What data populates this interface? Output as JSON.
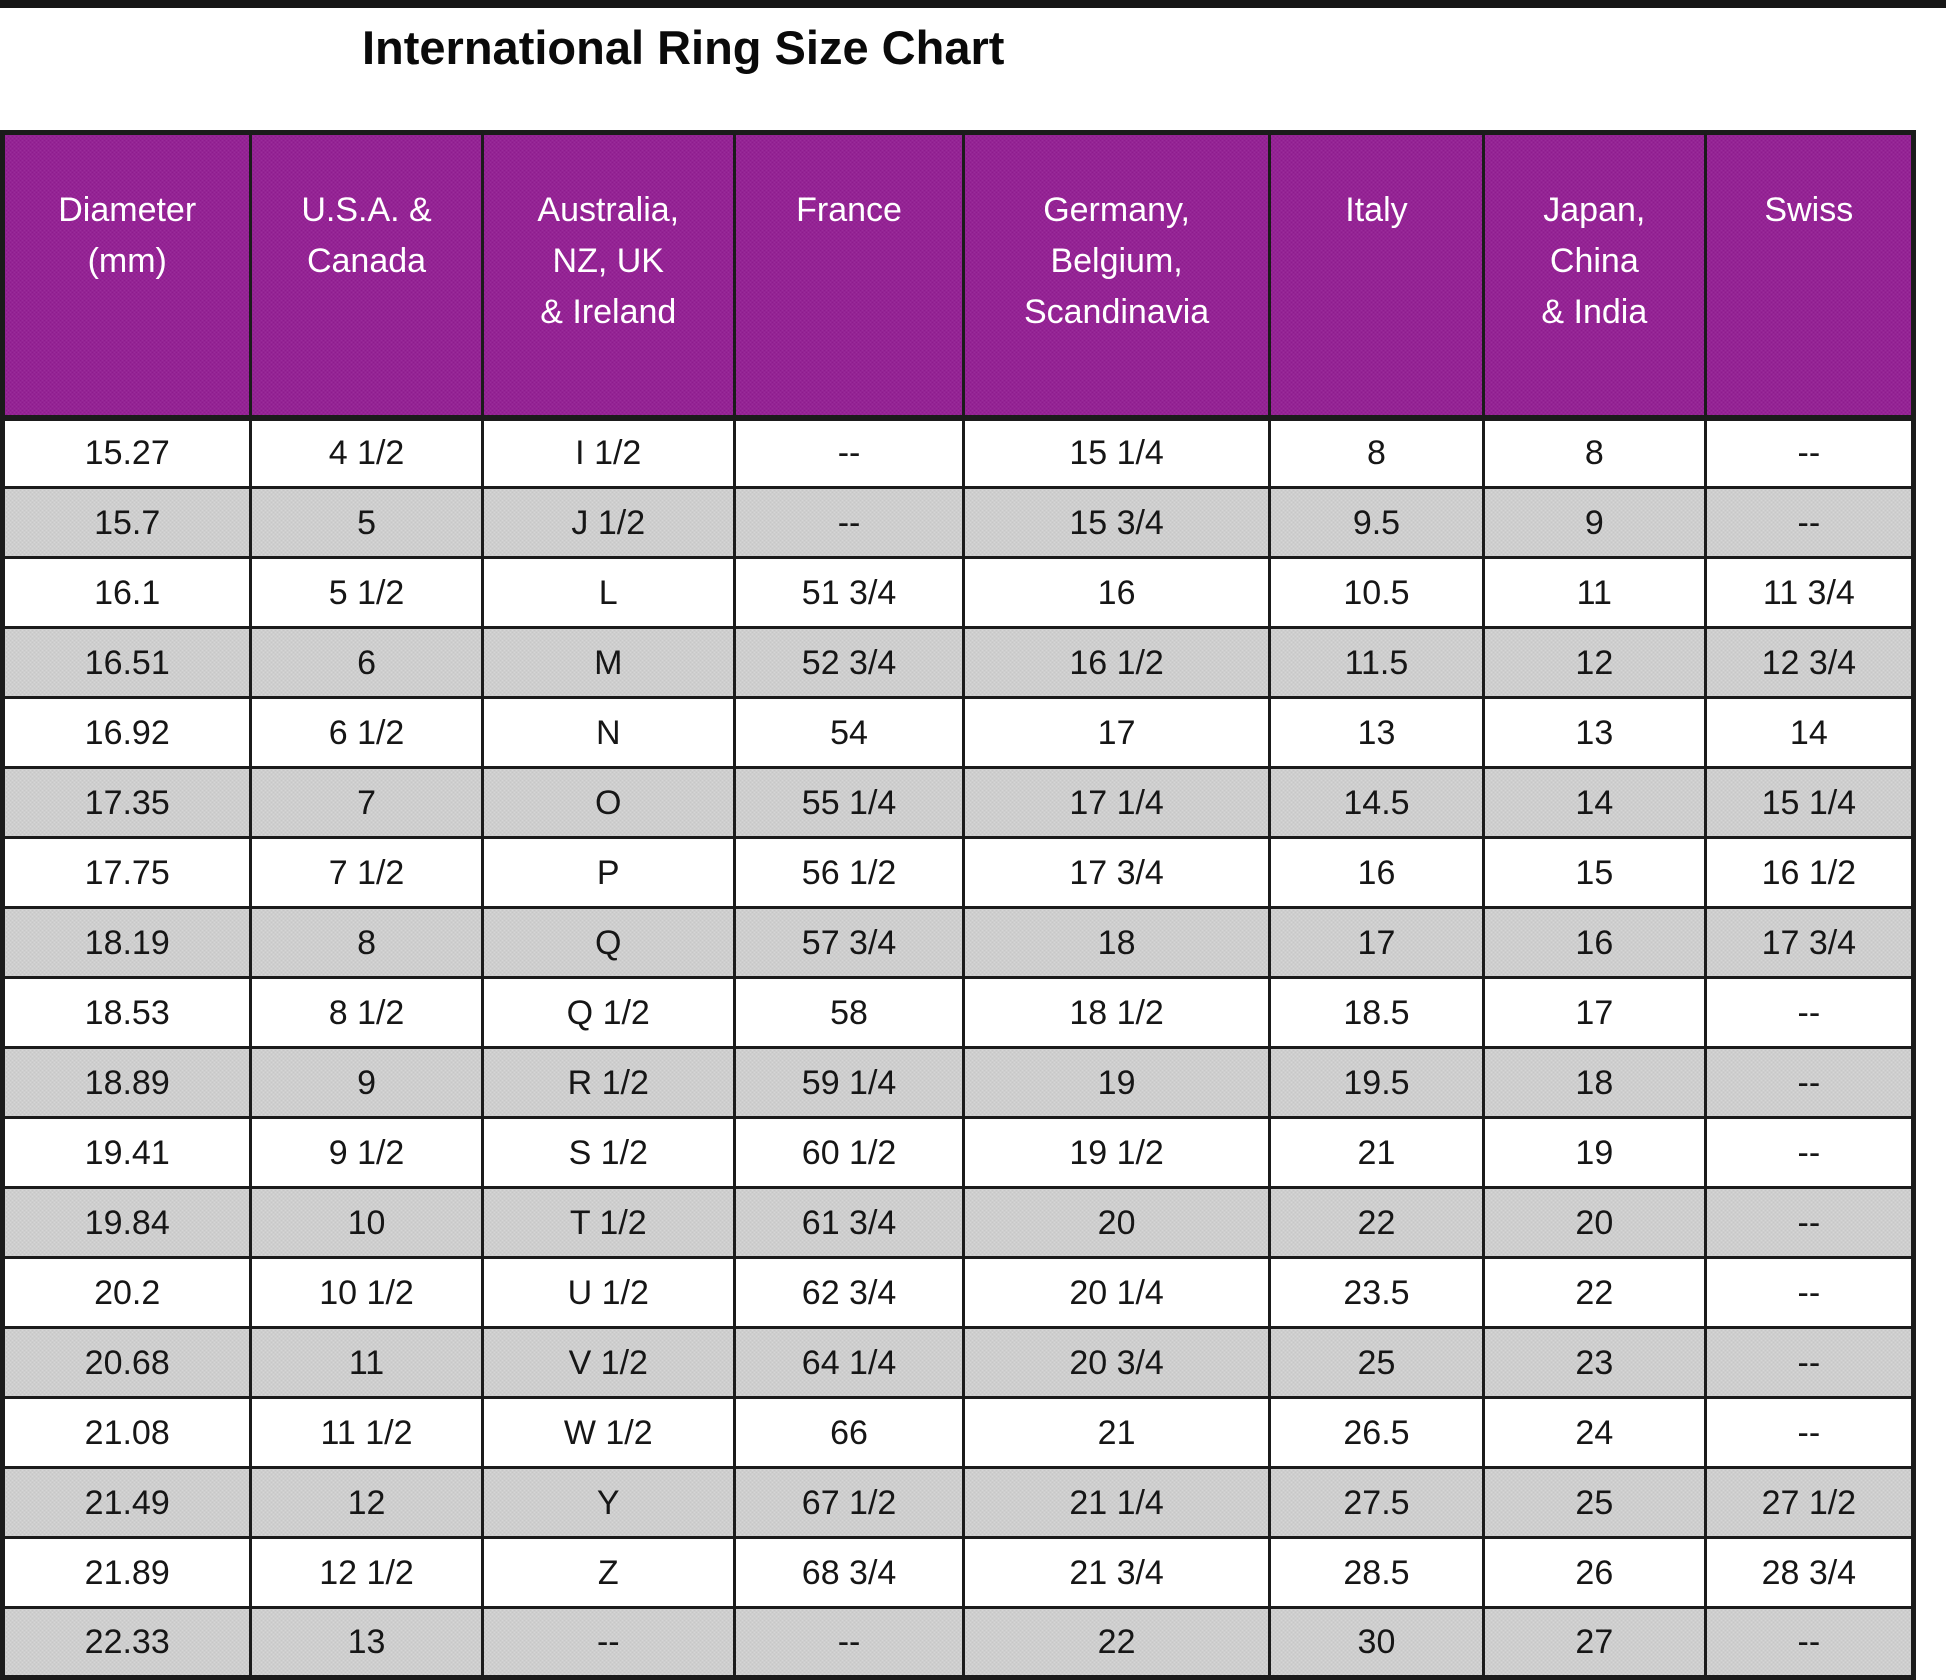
{
  "colors": {
    "header_bg": "#8e1b8e",
    "header_text": "#ffffff",
    "row_alt_bg": "#c7c7c7",
    "row_bg": "#ffffff",
    "border": "#1b1b1b"
  },
  "chart_data": {
    "type": "table",
    "title": "International Ring Size Chart",
    "columns": [
      "Diameter\n(mm)",
      "U.S.A. &\nCanada",
      "Australia,\nNZ, UK\n& Ireland",
      "France",
      "Germany,\nBelgium,\nScandinavia",
      "Italy",
      "Japan,\nChina\n& India",
      "Swiss"
    ],
    "rows": [
      [
        "15.27",
        "4 1/2",
        "I 1/2",
        "--",
        "15 1/4",
        "8",
        "8",
        "--"
      ],
      [
        "15.7",
        "5",
        "J 1/2",
        "--",
        "15 3/4",
        "9.5",
        "9",
        "--"
      ],
      [
        "16.1",
        "5 1/2",
        "L",
        "51 3/4",
        "16",
        "10.5",
        "11",
        "11 3/4"
      ],
      [
        "16.51",
        "6",
        "M",
        "52 3/4",
        "16 1/2",
        "11.5",
        "12",
        "12 3/4"
      ],
      [
        "16.92",
        "6 1/2",
        "N",
        "54",
        "17",
        "13",
        "13",
        "14"
      ],
      [
        "17.35",
        "7",
        "O",
        "55 1/4",
        "17 1/4",
        "14.5",
        "14",
        "15 1/4"
      ],
      [
        "17.75",
        "7 1/2",
        "P",
        "56 1/2",
        "17 3/4",
        "16",
        "15",
        "16 1/2"
      ],
      [
        "18.19",
        "8",
        "Q",
        "57 3/4",
        "18",
        "17",
        "16",
        "17 3/4"
      ],
      [
        "18.53",
        "8 1/2",
        "Q 1/2",
        "58",
        "18 1/2",
        "18.5",
        "17",
        "--"
      ],
      [
        "18.89",
        "9",
        "R 1/2",
        "59 1/4",
        "19",
        "19.5",
        "18",
        "--"
      ],
      [
        "19.41",
        "9 1/2",
        "S 1/2",
        "60 1/2",
        "19 1/2",
        "21",
        "19",
        "--"
      ],
      [
        "19.84",
        "10",
        "T 1/2",
        "61 3/4",
        "20",
        "22",
        "20",
        "--"
      ],
      [
        "20.2",
        "10 1/2",
        "U 1/2",
        "62 3/4",
        "20 1/4",
        "23.5",
        "22",
        "--"
      ],
      [
        "20.68",
        "11",
        "V 1/2",
        "64 1/4",
        "20 3/4",
        "25",
        "23",
        "--"
      ],
      [
        "21.08",
        "11 1/2",
        "W 1/2",
        "66",
        "21",
        "26.5",
        "24",
        "--"
      ],
      [
        "21.49",
        "12",
        "Y",
        "67 1/2",
        "21 1/4",
        "27.5",
        "25",
        "27 1/2"
      ],
      [
        "21.89",
        "12 1/2",
        "Z",
        "68 3/4",
        "21 3/4",
        "28.5",
        "26",
        "28 3/4"
      ],
      [
        "22.33",
        "13",
        "--",
        "--",
        "22",
        "30",
        "27",
        "--"
      ]
    ]
  }
}
